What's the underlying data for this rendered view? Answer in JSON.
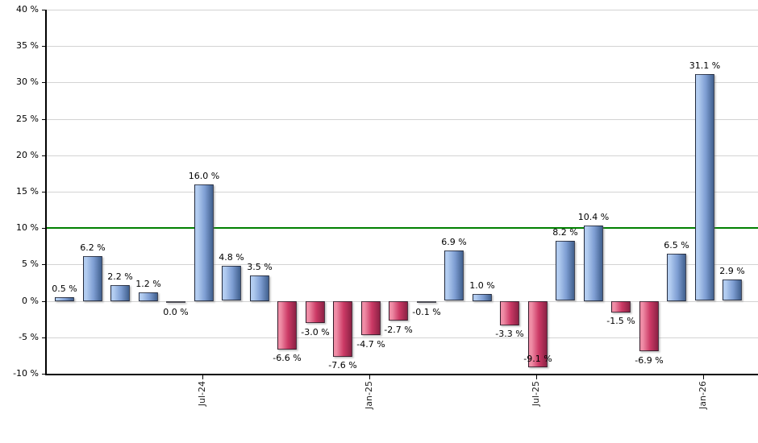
{
  "chart_data": {
    "type": "bar",
    "title": "",
    "xlabel": "",
    "ylabel": "",
    "ylim": [
      -10,
      40
    ],
    "grid": true,
    "legend": "none",
    "values": [
      0.5,
      6.2,
      2.2,
      1.2,
      0.0,
      16.0,
      4.8,
      3.5,
      -6.6,
      -3.0,
      -7.6,
      -4.7,
      -2.7,
      -0.1,
      6.9,
      1.0,
      -3.3,
      -9.1,
      8.2,
      10.4,
      -1.5,
      -6.9,
      6.5,
      31.1,
      2.9
    ],
    "bar_labels": [
      "0.5 %",
      "6.2 %",
      "2.2 %",
      "1.2 %",
      "0.0 %",
      "16.0 %",
      "4.8 %",
      "3.5 %",
      "-6.6 %",
      "-3.0 %",
      "-7.6 %",
      "-4.7 %",
      "-2.7 %",
      "-0.1 %",
      "6.9 %",
      "1.0 %",
      "-3.3 %",
      "-9.1 %",
      "8.2 %",
      "10.4 %",
      "-1.5 %",
      "-6.9 %",
      "6.5 %",
      "31.1 %",
      "2.9 %"
    ],
    "x_ticks": [
      {
        "label": "Jul-24",
        "index": 5
      },
      {
        "label": "Jan-25",
        "index": 11
      },
      {
        "label": "Jul-25",
        "index": 17
      },
      {
        "label": "Jan-26",
        "index": 23
      }
    ],
    "y_ticks": [
      {
        "label": "40 %",
        "value": 40
      },
      {
        "label": "35 %",
        "value": 35
      },
      {
        "label": "30 %",
        "value": 30
      },
      {
        "label": "25 %",
        "value": 25
      },
      {
        "label": "20 %",
        "value": 20
      },
      {
        "label": "15 %",
        "value": 15
      },
      {
        "label": "10 %",
        "value": 10
      },
      {
        "label": "5 %",
        "value": 5
      },
      {
        "label": "0 %",
        "value": 0
      },
      {
        "label": "-5 %",
        "value": -5
      },
      {
        "label": "-10 %",
        "value": -10
      }
    ],
    "reference_line": {
      "value": 10,
      "color": "#008000"
    },
    "colors": {
      "positive_light": "#B2CCF0",
      "positive_mid": "#7E9ED3",
      "positive_dark": "#41608E",
      "negative_light": "#EF8DA6",
      "negative_mid": "#CC3A66",
      "negative_dark": "#8C2144",
      "grid": "#D3D3D3",
      "axis": "#000000",
      "text": "#000000",
      "background": "#FFFFFF"
    }
  }
}
